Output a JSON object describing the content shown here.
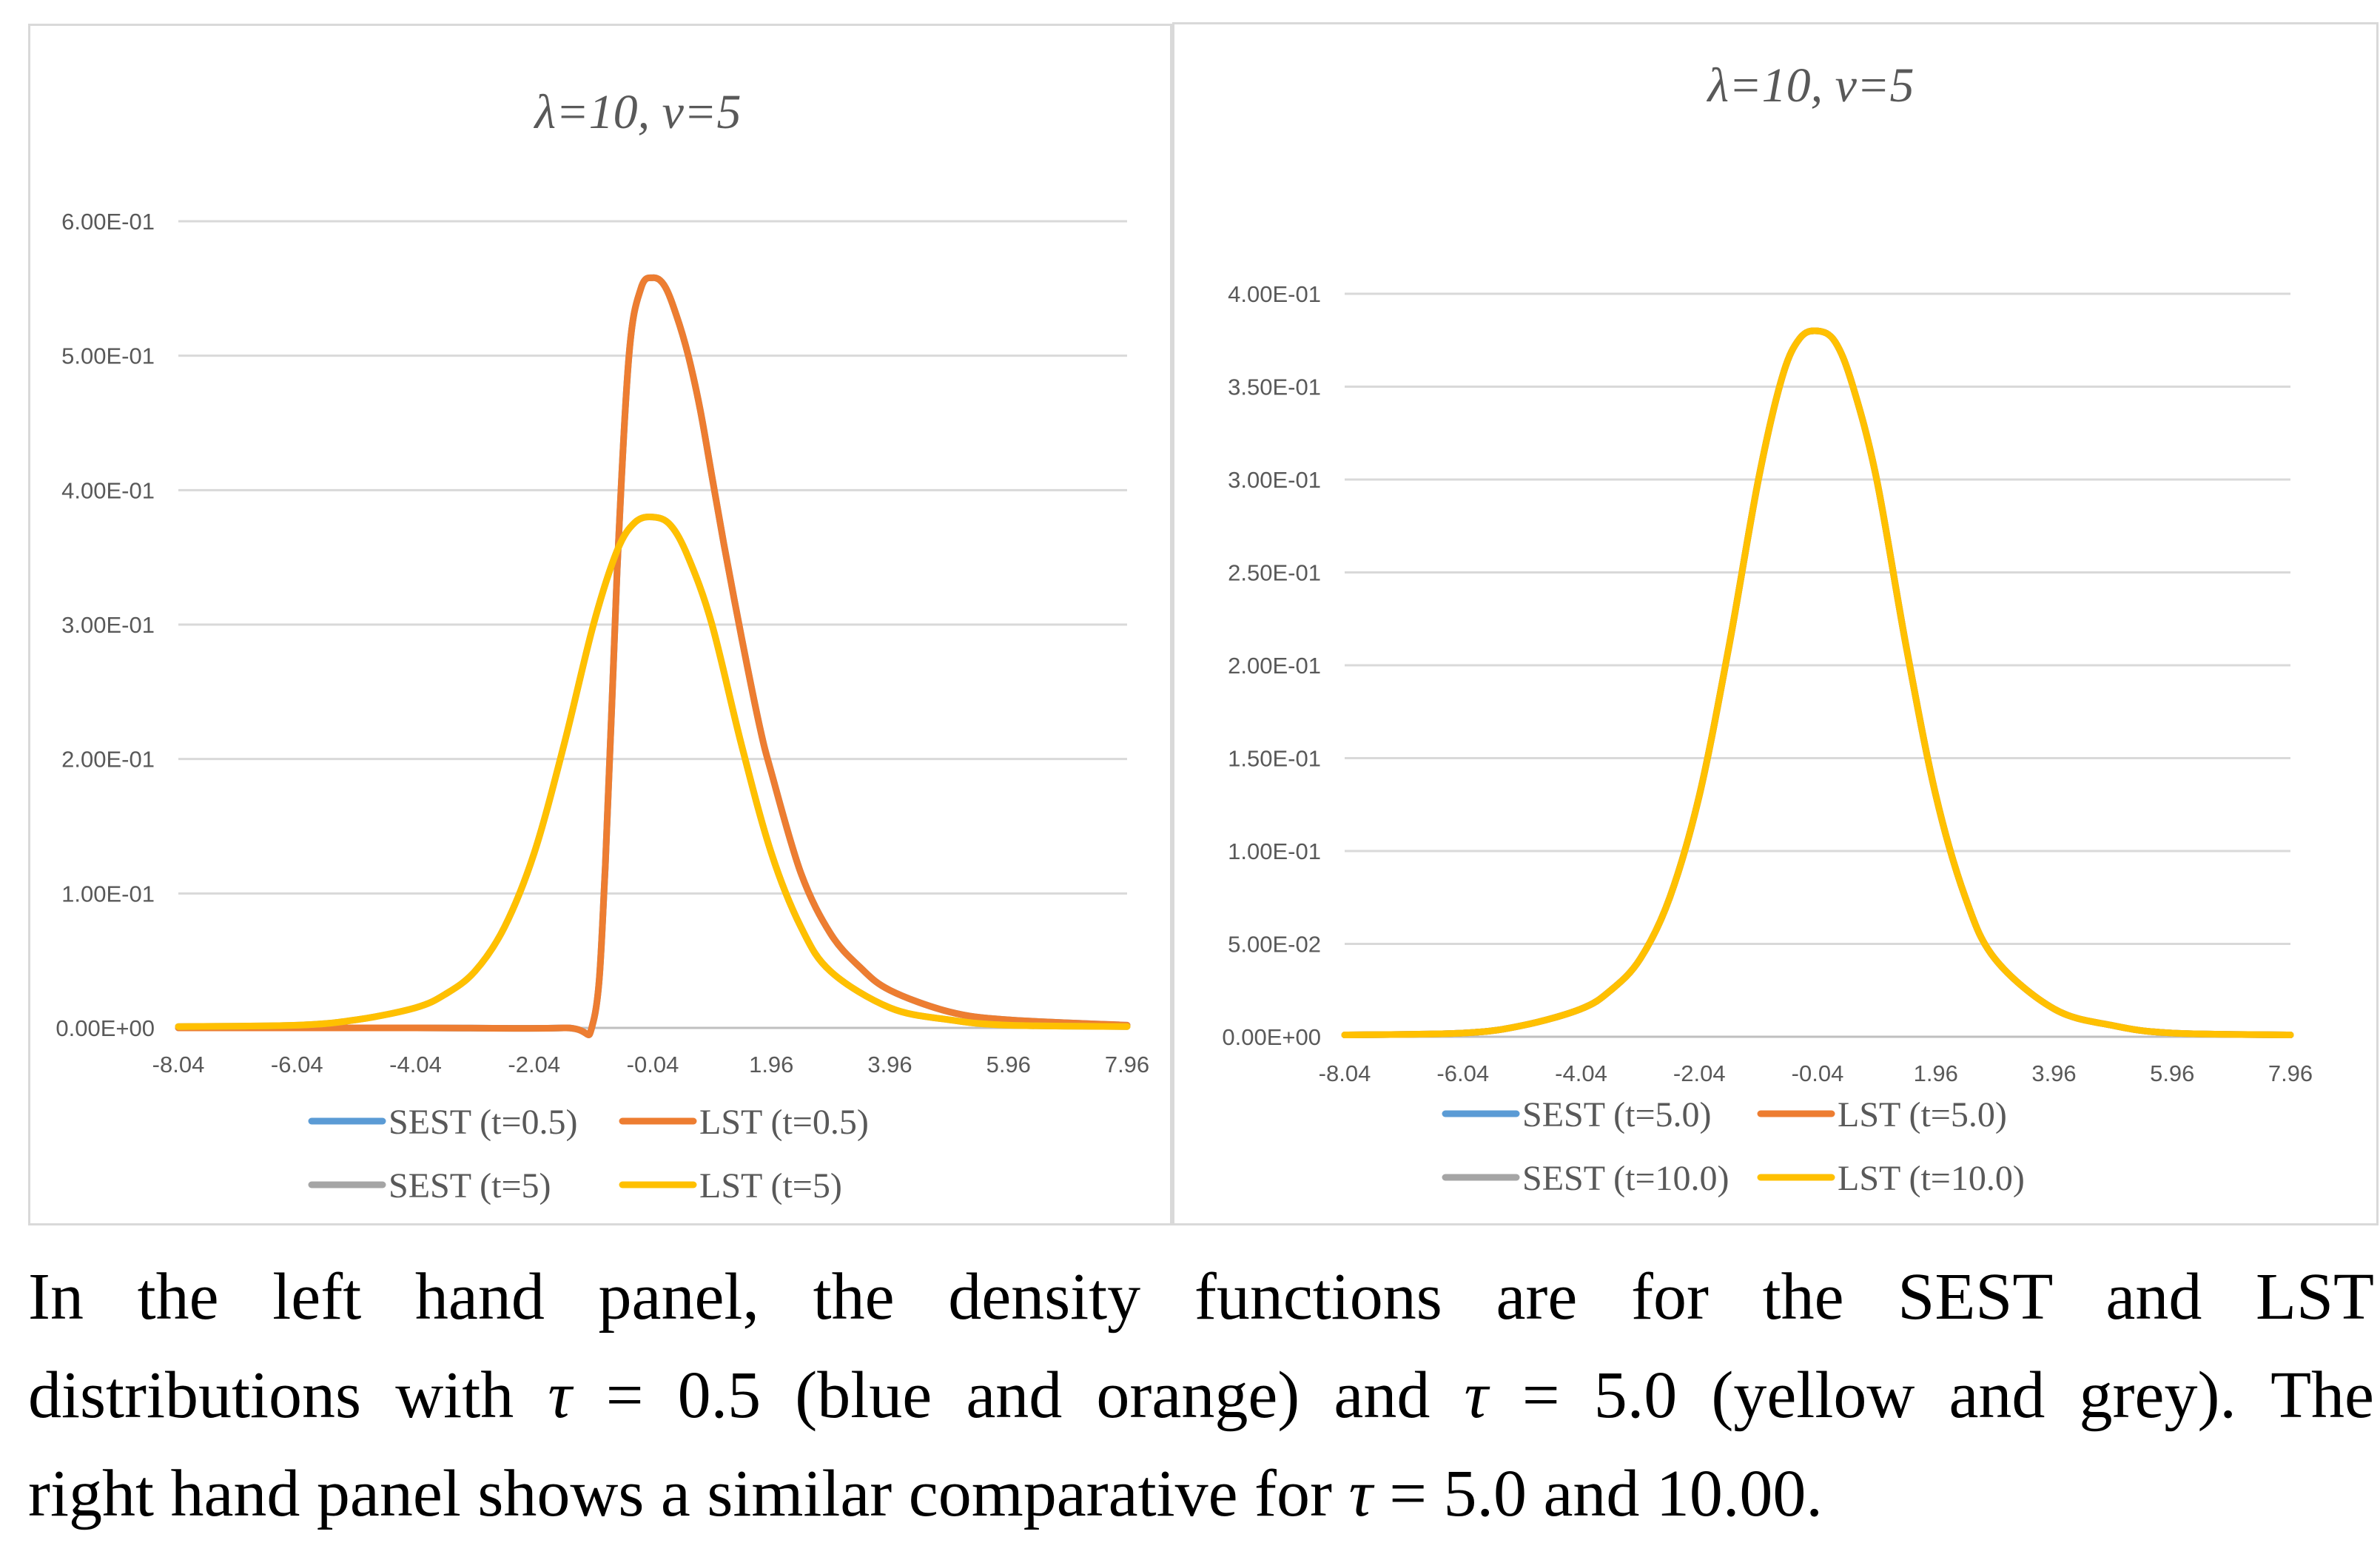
{
  "charts": [
    {
      "title": "λ=10, ν=5",
      "y_ticks": [
        "0.00E+00",
        "1.00E-01",
        "2.00E-01",
        "3.00E-01",
        "4.00E-01",
        "5.00E-01",
        "6.00E-01"
      ],
      "x_ticks": [
        "-8.04",
        "-6.04",
        "-4.04",
        "-2.04",
        "-0.04",
        "1.96",
        "3.96",
        "5.96",
        "7.96"
      ],
      "legend": [
        {
          "label": "SEST (t=0.5)",
          "color": "#5b9bd5"
        },
        {
          "label": "LST (t=0.5)",
          "color": "#ed7d31"
        },
        {
          "label": "SEST (t=5)",
          "color": "#a5a5a5"
        },
        {
          "label": "LST (t=5)",
          "color": "#ffc000"
        }
      ]
    },
    {
      "title": "λ=10, ν=5",
      "y_ticks": [
        "0.00E+00",
        "5.00E-02",
        "1.00E-01",
        "1.50E-01",
        "2.00E-01",
        "2.50E-01",
        "3.00E-01",
        "3.50E-01",
        "4.00E-01"
      ],
      "x_ticks": [
        "-8.04",
        "-6.04",
        "-4.04",
        "-2.04",
        "-0.04",
        "1.96",
        "3.96",
        "5.96",
        "7.96"
      ],
      "legend": [
        {
          "label": "SEST (t=5.0)",
          "color": "#5b9bd5"
        },
        {
          "label": "LST (t=5.0)",
          "color": "#ed7d31"
        },
        {
          "label": "SEST (t=10.0)",
          "color": "#a5a5a5"
        },
        {
          "label": "LST (t=10.0)",
          "color": "#ffc000"
        }
      ]
    }
  ],
  "chart_data": [
    {
      "type": "line",
      "title": "λ=10, ν=5",
      "xlim": [
        -8.04,
        7.96
      ],
      "ylim": [
        0,
        0.6
      ],
      "grid": true,
      "legend_position": "bottom",
      "series": [
        {
          "name": "SEST (t=0.5)",
          "color": "#5b9bd5",
          "x": [
            -8.04,
            -4.04,
            -1.54,
            -1.04,
            -0.84,
            -0.64,
            -0.44,
            -0.24,
            -0.04,
            0.16,
            0.36,
            0.56,
            0.76,
            0.96,
            1.16,
            1.46,
            1.76,
            1.96,
            2.46,
            2.96,
            3.46,
            3.96,
            4.96,
            5.96,
            7.96
          ],
          "y": [
            0,
            0,
            0,
            0.005,
            0.12,
            0.34,
            0.5,
            0.55,
            0.558,
            0.552,
            0.53,
            0.5,
            0.46,
            0.41,
            0.36,
            0.29,
            0.225,
            0.19,
            0.115,
            0.07,
            0.045,
            0.028,
            0.012,
            0.006,
            0.002
          ]
        },
        {
          "name": "LST (t=0.5)",
          "color": "#ed7d31",
          "x": [
            -8.04,
            -4.04,
            -1.54,
            -1.04,
            -0.84,
            -0.64,
            -0.44,
            -0.24,
            -0.04,
            0.16,
            0.36,
            0.56,
            0.76,
            0.96,
            1.16,
            1.46,
            1.76,
            1.96,
            2.46,
            2.96,
            3.46,
            3.96,
            4.96,
            5.96,
            7.96
          ],
          "y": [
            0,
            0,
            0,
            0.005,
            0.12,
            0.34,
            0.5,
            0.55,
            0.558,
            0.552,
            0.53,
            0.5,
            0.46,
            0.41,
            0.36,
            0.29,
            0.225,
            0.19,
            0.115,
            0.07,
            0.045,
            0.028,
            0.012,
            0.006,
            0.002
          ]
        },
        {
          "name": "SEST (t=5)",
          "color": "#a5a5a5",
          "x": [
            -8.04,
            -6.04,
            -5.04,
            -4.04,
            -3.54,
            -3.04,
            -2.54,
            -2.04,
            -1.54,
            -1.04,
            -0.64,
            -0.34,
            -0.04,
            0.26,
            0.56,
            0.96,
            1.46,
            1.96,
            2.46,
            2.96,
            3.96,
            4.96,
            5.96,
            7.96
          ],
          "y": [
            0.001,
            0.002,
            0.006,
            0.015,
            0.025,
            0.042,
            0.075,
            0.13,
            0.21,
            0.3,
            0.355,
            0.376,
            0.38,
            0.374,
            0.35,
            0.3,
            0.21,
            0.13,
            0.075,
            0.042,
            0.015,
            0.006,
            0.002,
            0.001
          ]
        },
        {
          "name": "LST (t=5)",
          "color": "#ffc000",
          "x": [
            -8.04,
            -6.04,
            -5.04,
            -4.04,
            -3.54,
            -3.04,
            -2.54,
            -2.04,
            -1.54,
            -1.04,
            -0.64,
            -0.34,
            -0.04,
            0.26,
            0.56,
            0.96,
            1.46,
            1.96,
            2.46,
            2.96,
            3.96,
            4.96,
            5.96,
            7.96
          ],
          "y": [
            0.001,
            0.002,
            0.006,
            0.015,
            0.025,
            0.042,
            0.075,
            0.13,
            0.21,
            0.3,
            0.355,
            0.376,
            0.38,
            0.374,
            0.35,
            0.3,
            0.21,
            0.13,
            0.075,
            0.042,
            0.015,
            0.006,
            0.002,
            0.001
          ]
        }
      ]
    },
    {
      "type": "line",
      "title": "λ=10, ν=5",
      "xlim": [
        -8.04,
        7.96
      ],
      "ylim": [
        0,
        0.4
      ],
      "grid": true,
      "legend_position": "bottom",
      "series": [
        {
          "name": "SEST (t=5.0)",
          "color": "#5b9bd5",
          "x": [
            -8.04,
            -6.04,
            -5.04,
            -4.04,
            -3.54,
            -3.04,
            -2.54,
            -2.04,
            -1.54,
            -1.04,
            -0.64,
            -0.34,
            -0.04,
            0.26,
            0.56,
            0.96,
            1.46,
            1.96,
            2.46,
            2.96,
            3.96,
            4.96,
            5.96,
            7.96
          ],
          "y": [
            0.001,
            0.002,
            0.006,
            0.015,
            0.025,
            0.042,
            0.075,
            0.13,
            0.21,
            0.3,
            0.355,
            0.376,
            0.38,
            0.374,
            0.35,
            0.3,
            0.21,
            0.13,
            0.075,
            0.042,
            0.015,
            0.006,
            0.002,
            0.001
          ]
        },
        {
          "name": "LST (t=5.0)",
          "color": "#ed7d31",
          "x": [
            -8.04,
            -6.04,
            -5.04,
            -4.04,
            -3.54,
            -3.04,
            -2.54,
            -2.04,
            -1.54,
            -1.04,
            -0.64,
            -0.34,
            -0.04,
            0.26,
            0.56,
            0.96,
            1.46,
            1.96,
            2.46,
            2.96,
            3.96,
            4.96,
            5.96,
            7.96
          ],
          "y": [
            0.001,
            0.002,
            0.006,
            0.015,
            0.025,
            0.042,
            0.075,
            0.13,
            0.21,
            0.3,
            0.355,
            0.376,
            0.38,
            0.374,
            0.35,
            0.3,
            0.21,
            0.13,
            0.075,
            0.042,
            0.015,
            0.006,
            0.002,
            0.001
          ]
        },
        {
          "name": "SEST (t=10.0)",
          "color": "#a5a5a5",
          "x": [
            -8.04,
            -6.04,
            -5.04,
            -4.04,
            -3.54,
            -3.04,
            -2.54,
            -2.04,
            -1.54,
            -1.04,
            -0.64,
            -0.34,
            -0.04,
            0.26,
            0.56,
            0.96,
            1.46,
            1.96,
            2.46,
            2.96,
            3.96,
            4.96,
            5.96,
            7.96
          ],
          "y": [
            0.001,
            0.002,
            0.006,
            0.015,
            0.025,
            0.042,
            0.075,
            0.13,
            0.21,
            0.3,
            0.355,
            0.376,
            0.38,
            0.374,
            0.35,
            0.3,
            0.21,
            0.13,
            0.075,
            0.042,
            0.015,
            0.006,
            0.002,
            0.001
          ]
        },
        {
          "name": "LST (t=10.0)",
          "color": "#ffc000",
          "x": [
            -8.04,
            -6.04,
            -5.04,
            -4.04,
            -3.54,
            -3.04,
            -2.54,
            -2.04,
            -1.54,
            -1.04,
            -0.64,
            -0.34,
            -0.04,
            0.26,
            0.56,
            0.96,
            1.46,
            1.96,
            2.46,
            2.96,
            3.96,
            4.96,
            5.96,
            7.96
          ],
          "y": [
            0.001,
            0.002,
            0.006,
            0.015,
            0.025,
            0.042,
            0.075,
            0.13,
            0.21,
            0.3,
            0.355,
            0.376,
            0.38,
            0.374,
            0.35,
            0.3,
            0.21,
            0.13,
            0.075,
            0.042,
            0.015,
            0.006,
            0.002,
            0.001
          ]
        }
      ]
    }
  ],
  "caption": {
    "line1": "In the left hand panel, the density functions are for the SEST and LST",
    "line2_a": "distributions with ",
    "tau": "τ",
    "line2_b": " = 0.5 (blue and orange) and ",
    "line2_c": " = 5.0 (yellow and grey). The",
    "line3_a": "right hand panel shows a similar comparative for ",
    "line3_b": " = 5.0 and 10.00."
  }
}
